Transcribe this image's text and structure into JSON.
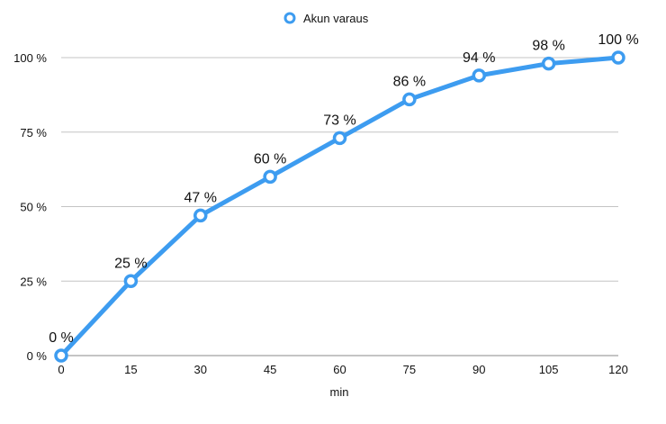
{
  "chart_data": {
    "type": "line",
    "xlabel": "min",
    "ylabel": "",
    "x": [
      0,
      15,
      30,
      45,
      60,
      75,
      90,
      105,
      120
    ],
    "xlim": [
      0,
      120
    ],
    "ylim": [
      0,
      100
    ],
    "x_ticks": [
      "0",
      "15",
      "30",
      "45",
      "60",
      "75",
      "90",
      "105",
      "120"
    ],
    "y_ticks": [
      "0 %",
      "25 %",
      "50 %",
      "75 %",
      "100 %"
    ],
    "grid": "horizontal",
    "legend_position": "top-center",
    "series": [
      {
        "name": "Akun varaus",
        "color": "#3d9cf0",
        "values": [
          0,
          25,
          47,
          60,
          73,
          86,
          94,
          98,
          100
        ],
        "labels": [
          "0 %",
          "25 %",
          "47 %",
          "60 %",
          "73 %",
          "86 %",
          "94 %",
          "98 %",
          "100 %"
        ]
      }
    ]
  }
}
